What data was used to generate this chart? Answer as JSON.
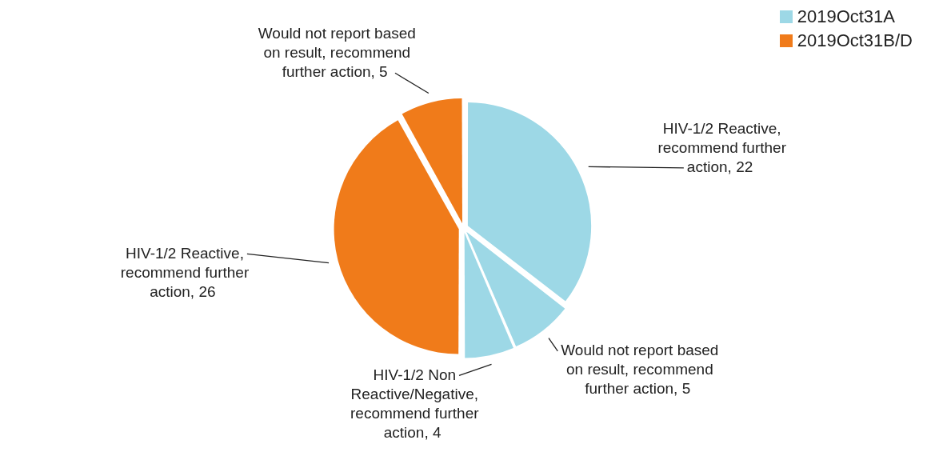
{
  "chart_data": {
    "type": "pie",
    "categories": [
      "HIV-1/2 Reactive, recommend further action",
      "Would not report based on result, recommend further action",
      "HIV-1/2 Non Reactive/Negative, recommend further action",
      "HIV-1/2 Reactive, recommend further action",
      "Would not report based on result, recommend further action"
    ],
    "values": [
      22,
      5,
      4,
      26,
      5
    ],
    "colors": [
      "#9dd8e6",
      "#9dd8e6",
      "#9dd8e6",
      "#f07b1a",
      "#f07b1a"
    ],
    "annotations": [
      "2019Oct31A",
      "2019Oct31B/D"
    ],
    "value_labels": [
      ", 22",
      ", 5",
      ", 4",
      ", 26",
      ", 5"
    ]
  }
}
